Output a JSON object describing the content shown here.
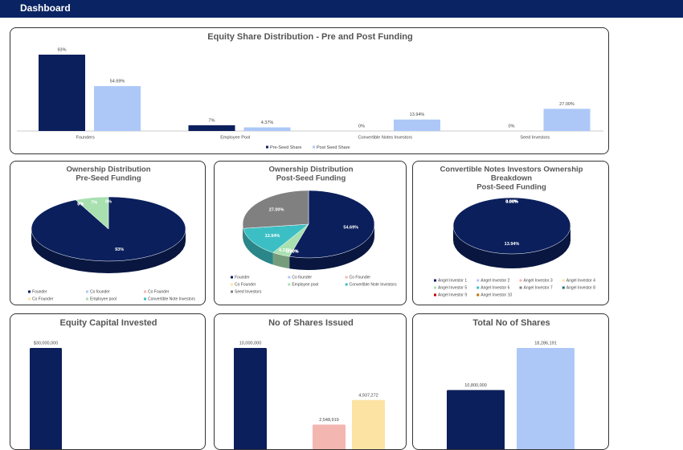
{
  "header": {
    "title": "Dashboard"
  },
  "chart_data": [
    {
      "type": "bar",
      "title": "Equity Share Distribution - Pre and Post Funding",
      "categories": [
        "Founders",
        "Employee Pool",
        "Convertible Notes Investors",
        "Seed Investors"
      ],
      "series": [
        {
          "name": "Pre-Seed Share",
          "color": "#0b1f5c",
          "values": [
            93,
            7,
            0,
            0
          ],
          "value_labels": [
            "93%",
            "7%",
            "0%",
            "0%"
          ]
        },
        {
          "name": "Post Seed Share",
          "color": "#adc8f7",
          "values": [
            54.69,
            4.37,
            13.94,
            27.0
          ],
          "value_labels": [
            "54.69%",
            "4.37%",
            "13.94%",
            "27.00%"
          ]
        }
      ]
    },
    {
      "type": "pie",
      "title": [
        "Ownership Distribution",
        "Pre-Seed Funding"
      ],
      "categories": [
        "Founder",
        "Co founder",
        "Co Founder",
        "Co Founder",
        "Employee pool",
        "Convertible Note Investors"
      ],
      "values": [
        93,
        0,
        0,
        0,
        7,
        0
      ],
      "value_labels": [
        "93%",
        "0%",
        "0%",
        "0%",
        "7%",
        "0%"
      ],
      "colors": [
        "#0b1f5c",
        "#adc8f7",
        "#f4b6b0",
        "#fce3a3",
        "#a8e0b0",
        "#3cbfc4"
      ]
    },
    {
      "type": "pie",
      "title": [
        "Ownership Distribution",
        "Post-Seed Funding"
      ],
      "categories": [
        "Founder",
        "Co founder",
        "Co Founder",
        "Co Founder",
        "Employee pool",
        "Convertible Note Investors",
        "Seed Investors"
      ],
      "values": [
        54.69,
        0,
        0,
        0,
        4.37,
        13.94,
        27.0
      ],
      "value_labels": [
        "54.69%",
        "0.00%",
        "0.00%",
        "0.00%",
        "4.37%",
        "13.94%",
        "27.00%"
      ],
      "colors": [
        "#0b1f5c",
        "#adc8f7",
        "#f4b6b0",
        "#fce3a3",
        "#a8e0b0",
        "#3cbfc4",
        "#808080"
      ]
    },
    {
      "type": "pie",
      "title": [
        "Convertible Notes Investors Ownership",
        "Breakdown",
        "Post-Seed Funding"
      ],
      "categories": [
        "Angel Investor 1",
        "Angel Investor 2",
        "Angel Investor 3",
        "Angel Investor 4",
        "Angel Investor 5",
        "Angel Investor 6",
        "Angel Investor 7",
        "Angel Investor 8",
        "Angel Investor 9",
        "Angel Investor 10"
      ],
      "values": [
        13.94,
        0,
        0,
        0,
        0,
        0,
        0,
        0,
        0,
        0
      ],
      "value_labels": [
        "13.94%",
        "0.00%",
        "0.00%",
        "0.00%",
        "0.00%",
        "0.00%",
        "0.00%",
        "0.00%",
        "0.00%",
        "0.00%"
      ],
      "colors": [
        "#0b1f5c",
        "#adc8f7",
        "#f4b6b0",
        "#fce3a3",
        "#a8e0b0",
        "#3cbfc4",
        "#808080",
        "#1f6f6f",
        "#c00000",
        "#c07000"
      ]
    },
    {
      "type": "bar",
      "title": "Equity Capital Invested",
      "values": [
        30000000
      ],
      "value_labels": [
        "$30,000,000"
      ],
      "colors": [
        "#0b1f5c"
      ]
    },
    {
      "type": "bar",
      "title": "No of Shares Issued",
      "values": [
        10000000,
        null,
        2548919,
        4937272
      ],
      "value_labels": [
        "10,000,000",
        null,
        "2,548,919",
        "4,937,272"
      ],
      "colors": [
        "#0b1f5c",
        "#adc8f7",
        "#f4b6b0",
        "#fce3a3"
      ]
    },
    {
      "type": "bar",
      "title": "Total No of Shares",
      "values": [
        10800000,
        18286191
      ],
      "value_labels": [
        "10,800,000",
        "18,286,191"
      ],
      "colors": [
        "#0b1f5c",
        "#adc8f7"
      ]
    }
  ]
}
